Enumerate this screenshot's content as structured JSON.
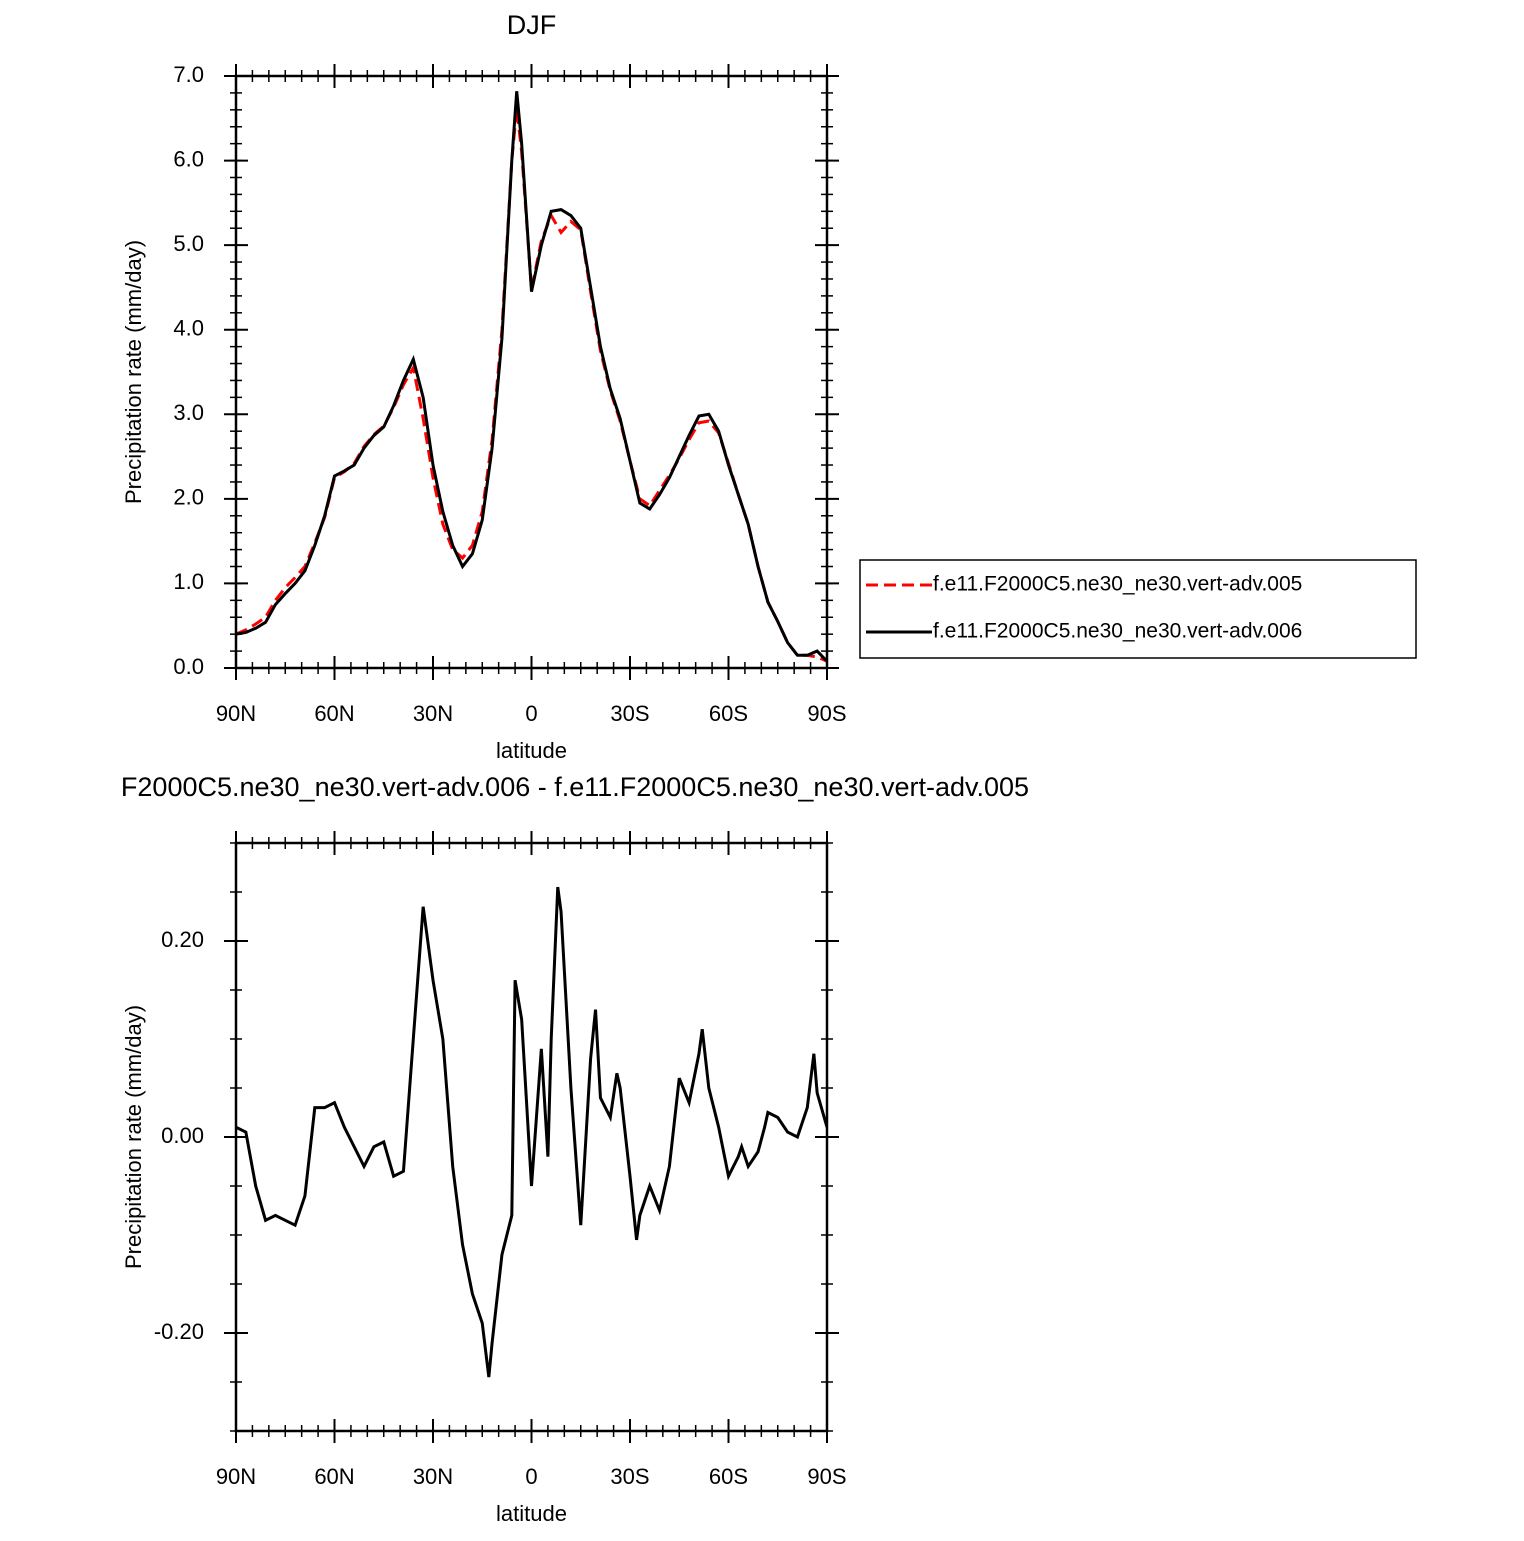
{
  "chart_data": [
    {
      "type": "line",
      "title": "DJF",
      "x_label": "latitude",
      "y_label": "Precipitation rate (mm/day)",
      "x": [
        90,
        87,
        84,
        81,
        78,
        75,
        72,
        69,
        66,
        63,
        60,
        57,
        54,
        51,
        48,
        45,
        42,
        39,
        36,
        33,
        30,
        27,
        24,
        21,
        18,
        15,
        12,
        9,
        6,
        4.5,
        3,
        0,
        -3,
        -6,
        -9,
        -12,
        -15,
        -18,
        -21,
        -24,
        -27,
        -30,
        -33,
        -36,
        -39,
        -42,
        -45,
        -48,
        -51,
        -54,
        -57,
        -60,
        -63,
        -66,
        -69,
        -72,
        -75,
        -78,
        -81,
        -84,
        -87,
        -90
      ],
      "series": [
        {
          "name": "f.e11.F2000C5.ne30_ne30.vert-adv.005",
          "color": "#ff0000",
          "dash": "dashed",
          "values": [
            0.4,
            0.45,
            0.52,
            0.6,
            0.8,
            0.95,
            1.07,
            1.2,
            1.48,
            1.78,
            2.25,
            2.32,
            2.42,
            2.62,
            2.76,
            2.86,
            3.08,
            3.35,
            3.55,
            2.95,
            2.25,
            1.7,
            1.4,
            1.3,
            1.45,
            1.85,
            2.7,
            4.0,
            6.0,
            6.62,
            6.1,
            4.48,
            5.05,
            5.35,
            5.15,
            5.28,
            5.18,
            4.45,
            3.75,
            3.28,
            2.92,
            2.45,
            2.0,
            1.92,
            2.1,
            2.28,
            2.48,
            2.7,
            2.9,
            2.92,
            2.78,
            2.42,
            2.05,
            1.7,
            1.2,
            0.78,
            0.55,
            0.3,
            0.15,
            0.15,
            0.13,
            0.08
          ]
        },
        {
          "name": "f.e11.F2000C5.ne30_ne30.vert-adv.006",
          "color": "#000000",
          "dash": "solid",
          "values": [
            0.4,
            0.42,
            0.47,
            0.54,
            0.75,
            0.88,
            1.0,
            1.15,
            1.45,
            1.8,
            2.27,
            2.33,
            2.4,
            2.6,
            2.75,
            2.85,
            3.1,
            3.4,
            3.65,
            3.2,
            2.4,
            1.85,
            1.45,
            1.2,
            1.35,
            1.75,
            2.6,
            3.9,
            6.0,
            6.82,
            6.2,
            4.45,
            5.0,
            5.4,
            5.42,
            5.35,
            5.2,
            4.5,
            3.8,
            3.3,
            2.95,
            2.45,
            1.95,
            1.88,
            2.05,
            2.25,
            2.5,
            2.75,
            2.98,
            3.0,
            2.8,
            2.4,
            2.05,
            1.7,
            1.2,
            0.78,
            0.55,
            0.3,
            0.15,
            0.15,
            0.2,
            0.08
          ]
        }
      ],
      "xlim": [
        90,
        -90
      ],
      "xticks": [
        {
          "value": 90,
          "label": "90N"
        },
        {
          "value": 60,
          "label": "60N"
        },
        {
          "value": 30,
          "label": "30N"
        },
        0,
        {
          "value": -30,
          "label": "30S"
        },
        {
          "value": -60,
          "label": "60S"
        },
        {
          "value": -90,
          "label": "90S"
        }
      ],
      "ylim": [
        0,
        7
      ],
      "yticks": [
        {
          "value": 0,
          "label": "0.0"
        },
        {
          "value": 1,
          "label": "1.0"
        },
        {
          "value": 2,
          "label": "2.0"
        },
        {
          "value": 3,
          "label": "3.0"
        },
        {
          "value": 4,
          "label": "4.0"
        },
        {
          "value": 5,
          "label": "5.0"
        },
        {
          "value": 6,
          "label": "6.0"
        },
        {
          "value": 7,
          "label": "7.0"
        }
      ],
      "legend": "right"
    },
    {
      "type": "line",
      "title": "F2000C5.ne30_ne30.vert-adv.006 - f.e11.F2000C5.ne30_ne30.vert-adv.005",
      "x_label": "latitude",
      "y_label": "Precipitation rate (mm/day)",
      "x": [
        90,
        87,
        84,
        81,
        78,
        75,
        72,
        69,
        66,
        63,
        60,
        57,
        54,
        51,
        48,
        45,
        42,
        39,
        36,
        33,
        30,
        27,
        24,
        21,
        18,
        15,
        13,
        12,
        9,
        6,
        5,
        3,
        0,
        -3,
        -5,
        -6,
        -8,
        -9,
        -12,
        -15,
        -18,
        -19.5,
        -21,
        -24,
        -26,
        -27,
        -30,
        -32,
        -33,
        -36,
        -39,
        -42,
        -45,
        -48,
        -51,
        -52,
        -54,
        -57,
        -60,
        -63,
        -64,
        -66,
        -69,
        -71,
        -72,
        -75,
        -78,
        -81,
        -84,
        -86,
        -87,
        -90
      ],
      "series": [
        {
          "color": "#000000",
          "dash": "solid",
          "values": [
            0.01,
            0.005,
            -0.05,
            -0.085,
            -0.08,
            -0.085,
            -0.09,
            -0.06,
            0.03,
            0.03,
            0.035,
            0.01,
            -0.01,
            -0.03,
            -0.01,
            -0.005,
            -0.04,
            -0.035,
            0.1,
            0.235,
            0.16,
            0.1,
            -0.03,
            -0.11,
            -0.16,
            -0.19,
            -0.245,
            -0.21,
            -0.12,
            -0.08,
            0.16,
            0.12,
            -0.05,
            0.09,
            -0.02,
            0.1,
            0.255,
            0.23,
            0.05,
            -0.09,
            0.08,
            0.13,
            0.04,
            0.02,
            0.065,
            0.05,
            -0.04,
            -0.105,
            -0.08,
            -0.05,
            -0.075,
            -0.03,
            0.06,
            0.035,
            0.085,
            0.11,
            0.05,
            0.01,
            -0.04,
            -0.02,
            -0.01,
            -0.03,
            -0.015,
            0.01,
            0.025,
            0.02,
            0.005,
            0.0,
            0.03,
            0.085,
            0.045,
            0.01
          ]
        }
      ],
      "xlim": [
        90,
        -90
      ],
      "xticks": [
        {
          "value": 90,
          "label": "90N"
        },
        {
          "value": 60,
          "label": "60N"
        },
        {
          "value": 30,
          "label": "30N"
        },
        0,
        {
          "value": -30,
          "label": "30S"
        },
        {
          "value": -60,
          "label": "60S"
        },
        {
          "value": -90,
          "label": "90S"
        }
      ],
      "ylim": [
        -0.3,
        0.3
      ],
      "yticks": [
        {
          "value": -0.2,
          "label": "-0.20"
        },
        {
          "value": 0,
          "label": "0.00"
        },
        {
          "value": 0.2,
          "label": "0.20"
        }
      ]
    }
  ]
}
